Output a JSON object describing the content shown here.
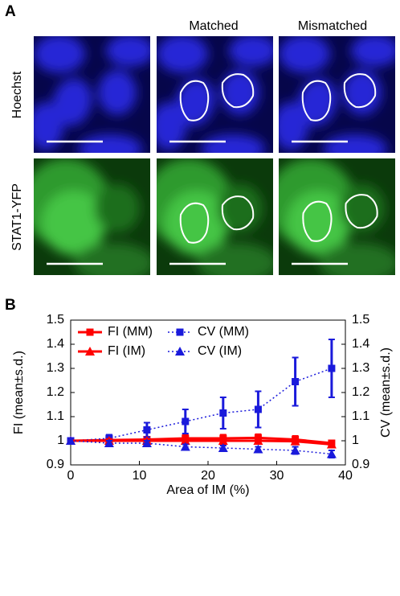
{
  "panel_a": {
    "label": "A",
    "columns": [
      "Matched",
      "Mismatched"
    ],
    "rows": [
      "Hoechst",
      "STAT1-YFP"
    ]
  },
  "panel_b": {
    "label": "B"
  },
  "chart_data": {
    "type": "line",
    "x_label": "Area of IM (%)",
    "y_label": "FI (mean±s.d.)",
    "y2_label": "CV (mean±s.d.)",
    "xlim": [
      0,
      40
    ],
    "xticks": [
      0,
      10,
      20,
      30,
      40
    ],
    "ylim": [
      0.9,
      1.5
    ],
    "yticks": [
      0.9,
      1,
      1.1,
      1.2,
      1.3,
      1.4,
      1.5
    ],
    "y2lim": [
      0.9,
      1.5
    ],
    "y2ticks": [
      0.9,
      1,
      1.1,
      1.2,
      1.3,
      1.4,
      1.5
    ],
    "x": [
      0,
      5.6,
      11.1,
      16.7,
      22.2,
      27.3,
      32.7,
      38
    ],
    "series": [
      {
        "name": "FI (MM)",
        "color": "#ff0000",
        "marker": "square",
        "linestyle": "solid",
        "values": [
          1,
          1.003,
          1.005,
          1.01,
          1.01,
          1.012,
          1.005,
          0.99
        ],
        "errors": [
          0,
          0.01,
          0.01,
          0.015,
          0.015,
          0.015,
          0.015,
          0.01
        ]
      },
      {
        "name": "CV (MM)",
        "color": "#1a1adb",
        "marker": "square",
        "linestyle": "dotted",
        "axis": "y2",
        "values": [
          1,
          1.01,
          1.045,
          1.08,
          1.115,
          1.13,
          1.245,
          1.3
        ],
        "errors": [
          0,
          0.015,
          0.03,
          0.05,
          0.065,
          0.075,
          0.1,
          0.12
        ]
      },
      {
        "name": "FI (IM)",
        "color": "#ff0000",
        "marker": "triangle",
        "linestyle": "solid",
        "values": [
          1,
          1,
          1,
          1,
          1,
          1,
          0.998,
          0.985
        ],
        "errors": [
          0,
          0.008,
          0.008,
          0.01,
          0.01,
          0.01,
          0.01,
          0.01
        ]
      },
      {
        "name": "CV (IM)",
        "color": "#1a1adb",
        "marker": "triangle",
        "linestyle": "dotted",
        "axis": "y2",
        "values": [
          1,
          0.99,
          0.99,
          0.975,
          0.97,
          0.965,
          0.96,
          0.945
        ],
        "errors": [
          0,
          0.01,
          0.01,
          0.01,
          0.01,
          0.01,
          0.015,
          0.015
        ]
      }
    ]
  }
}
